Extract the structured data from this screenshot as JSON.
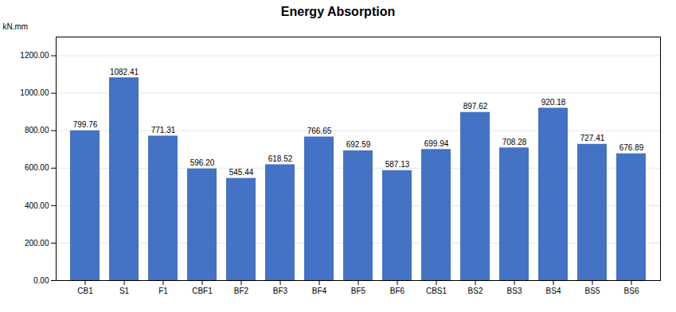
{
  "chart_data": {
    "type": "bar",
    "title": "Energy Absorption",
    "ylabel": "kN.mm",
    "categories": [
      "CB1",
      "S1",
      "F1",
      "CBF1",
      "BF2",
      "BF3",
      "BF4",
      "BF5",
      "BF6",
      "CBS1",
      "BS2",
      "BS3",
      "BS4",
      "BS5",
      "BS6"
    ],
    "values": [
      799.76,
      1082.41,
      771.31,
      596.2,
      545.44,
      618.52,
      766.65,
      692.59,
      587.13,
      699.94,
      897.62,
      708.28,
      920.18,
      727.41,
      676.89
    ],
    "value_labels": [
      "799.76",
      "1082.41",
      "771.31",
      "596.20",
      "545.44",
      "618.52",
      "766.65",
      "692.59",
      "587.13",
      "699.94",
      "897.62",
      "708.28",
      "920.18",
      "727.41",
      "676.89"
    ],
    "color": "#4472C4",
    "ylim": [
      0,
      1300
    ],
    "yticks": [
      {
        "value": 0,
        "label": "0.00"
      },
      {
        "value": 200,
        "label": "200.00"
      },
      {
        "value": 400,
        "label": "400.00"
      },
      {
        "value": 600,
        "label": "600.00"
      },
      {
        "value": 800,
        "label": "800.00"
      },
      {
        "value": 1000,
        "label": "1000.00"
      },
      {
        "value": 1200,
        "label": "1200.00"
      }
    ],
    "grid": true,
    "data_labels": true
  }
}
